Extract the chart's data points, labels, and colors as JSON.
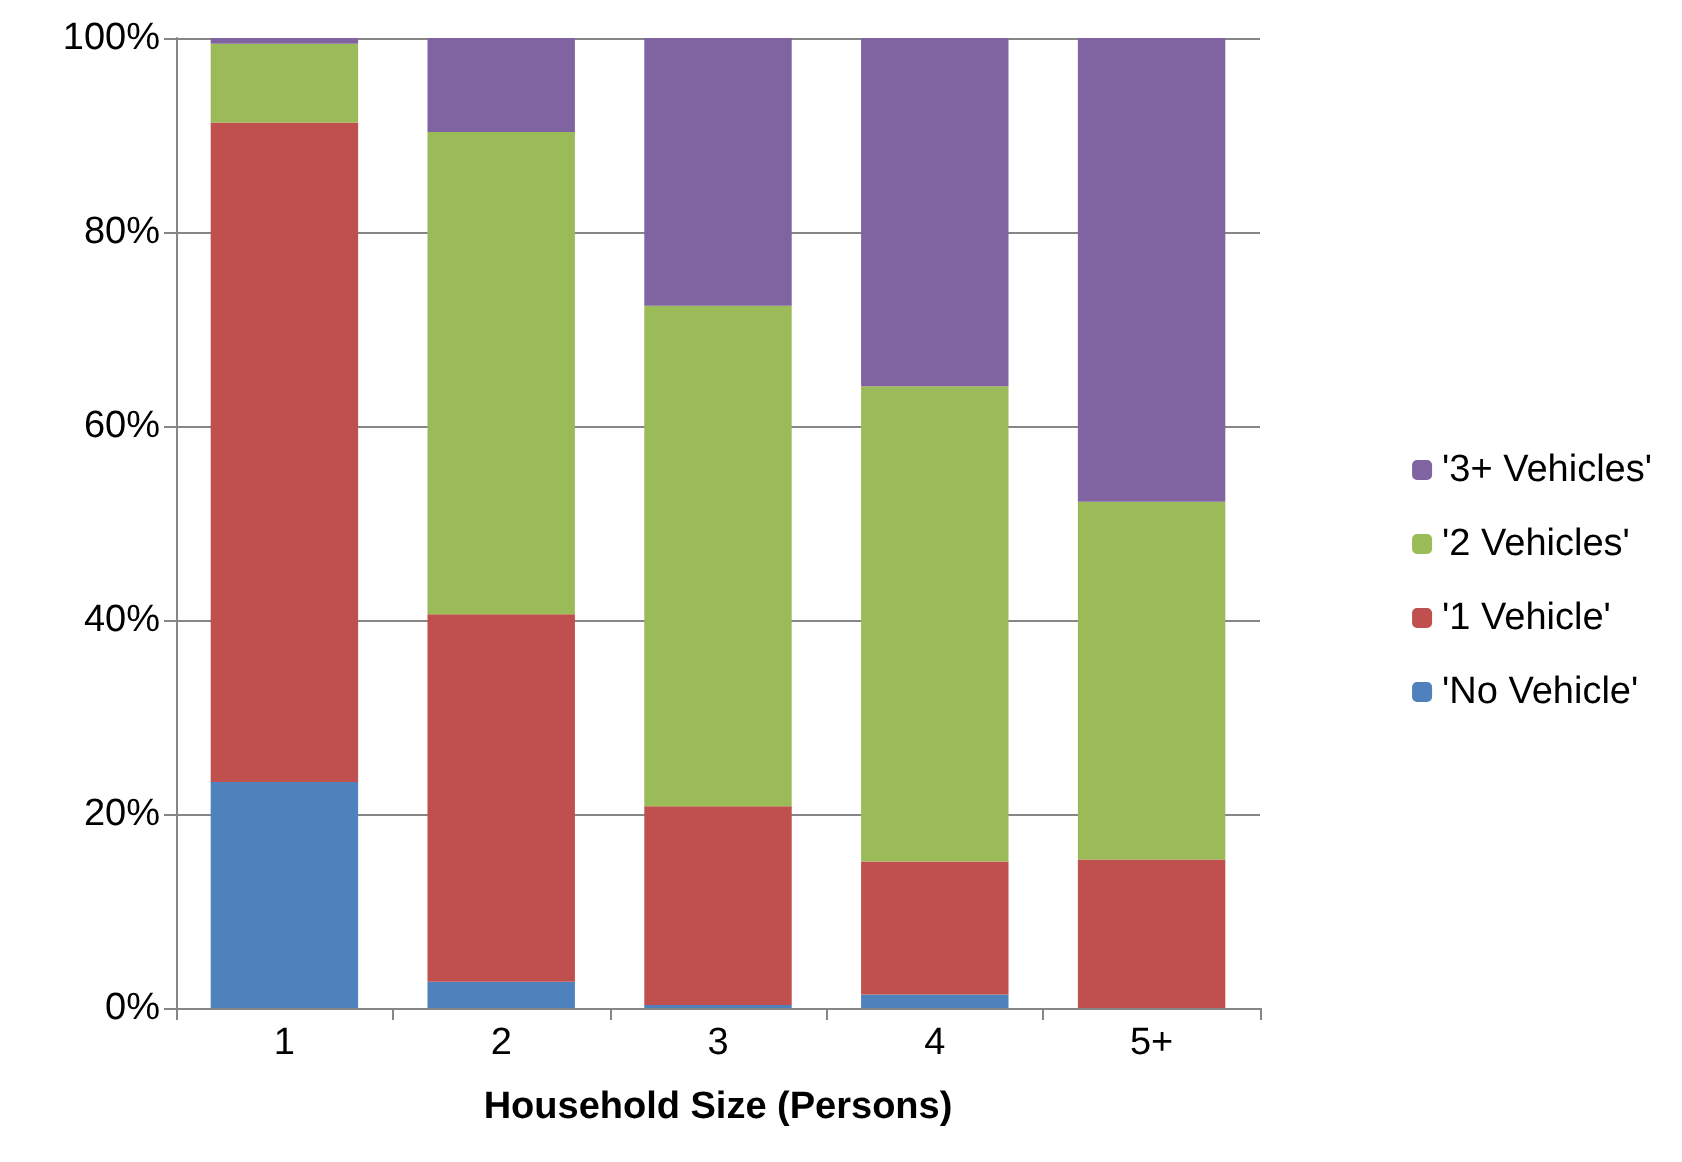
{
  "chart_data": {
    "type": "bar",
    "stacked": true,
    "xlabel": "Household Size (Persons)",
    "categories": [
      "1",
      "2",
      "3",
      "4",
      "5+"
    ],
    "series": [
      {
        "name": "'No Vehicle'",
        "color": "#4f81bd",
        "values": [
          23.3,
          2.7,
          0.3,
          1.4,
          0
        ]
      },
      {
        "name": "'1 Vehicle'",
        "color": "#c0504d",
        "values": [
          68.0,
          37.9,
          20.5,
          13.7,
          15.3
        ]
      },
      {
        "name": "'2 Vehicles'",
        "color": "#9bbb59",
        "values": [
          8.1,
          49.7,
          51.6,
          49.0,
          36.9
        ]
      },
      {
        "name": "'3+ Vehicles'",
        "color": "#8064a2",
        "values": [
          0.6,
          9.7,
          27.6,
          35.9,
          47.8
        ]
      }
    ],
    "ylim": [
      0,
      100
    ],
    "yticks": [
      {
        "value": 0,
        "label": "0%"
      },
      {
        "value": 20,
        "label": "20%"
      },
      {
        "value": 40,
        "label": "40%"
      },
      {
        "value": 60,
        "label": "60%"
      },
      {
        "value": 80,
        "label": "80%"
      },
      {
        "value": 100,
        "label": "100%"
      }
    ],
    "grid": "y",
    "legend": "right"
  }
}
